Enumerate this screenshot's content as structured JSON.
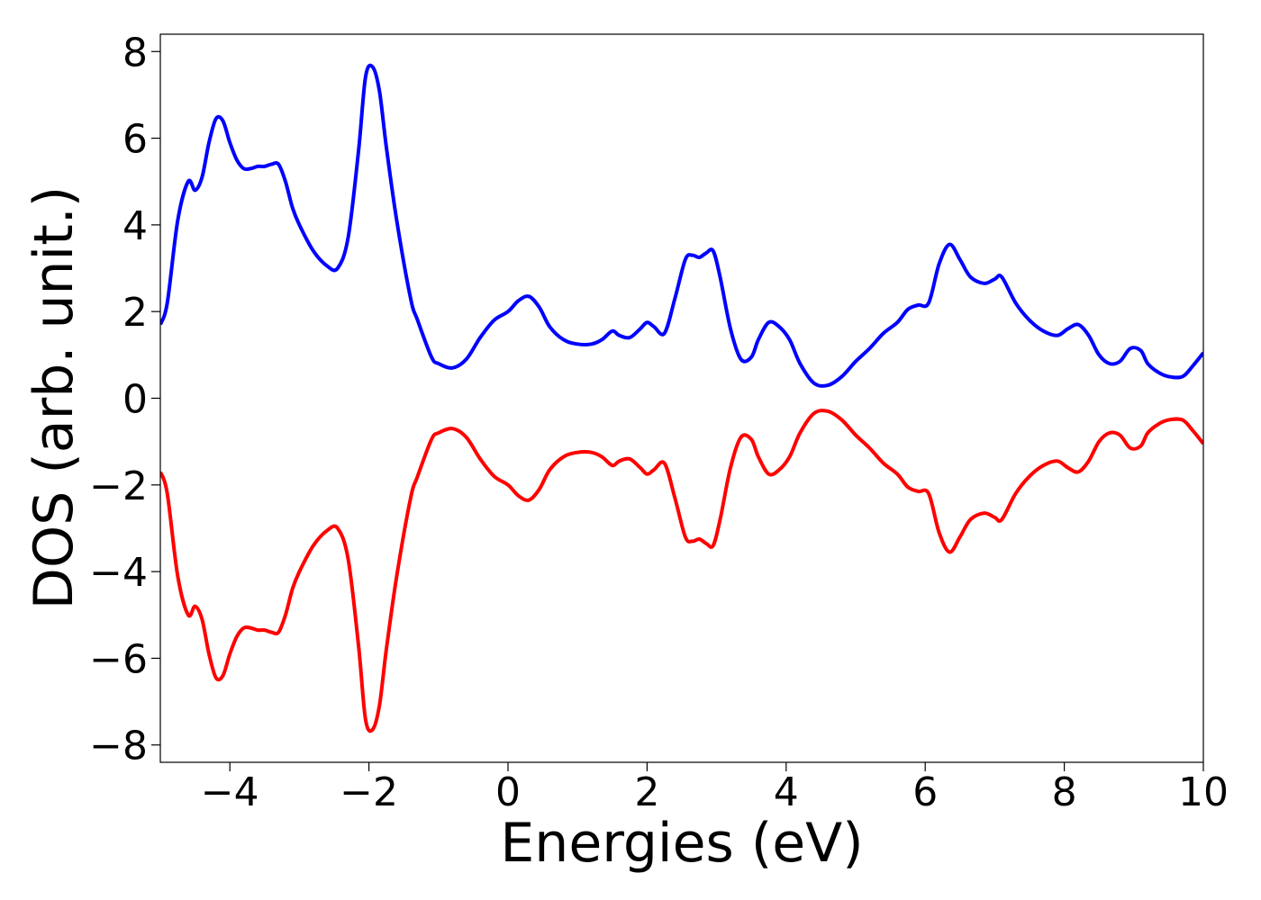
{
  "chart_data": {
    "type": "line",
    "title": "",
    "xlabel": "Energies (eV)",
    "ylabel": "DOS (arb. unit.)",
    "xlim": [
      -5,
      10
    ],
    "ylim": [
      -8.4,
      8.4
    ],
    "xticks": [
      -4,
      -2,
      0,
      2,
      4,
      6,
      8,
      10
    ],
    "xtick_labels": [
      "−4",
      "−2",
      "0",
      "2",
      "4",
      "6",
      "8",
      "10"
    ],
    "yticks": [
      8,
      6,
      4,
      2,
      0,
      -2,
      -4,
      -6,
      -8
    ],
    "ytick_labels": [
      "8",
      "6",
      "4",
      "2",
      "0",
      "−2",
      "−4",
      "−6",
      "−8"
    ],
    "grid": false,
    "legend": false,
    "series": [
      {
        "color": "#0000ff",
        "x": [
          -5.0,
          -4.9,
          -4.75,
          -4.6,
          -4.5,
          -4.4,
          -4.3,
          -4.2,
          -4.1,
          -4.0,
          -3.9,
          -3.8,
          -3.7,
          -3.6,
          -3.5,
          -3.4,
          -3.3,
          -3.2,
          -3.1,
          -3.0,
          -2.8,
          -2.6,
          -2.45,
          -2.3,
          -2.15,
          -2.05,
          -1.95,
          -1.85,
          -1.75,
          -1.6,
          -1.4,
          -1.3,
          -1.1,
          -1.0,
          -0.8,
          -0.6,
          -0.4,
          -0.2,
          0.0,
          0.15,
          0.3,
          0.45,
          0.6,
          0.8,
          1.0,
          1.2,
          1.35,
          1.5,
          1.6,
          1.75,
          1.9,
          2.0,
          2.1,
          2.25,
          2.4,
          2.55,
          2.65,
          2.75,
          2.85,
          2.95,
          3.05,
          3.2,
          3.35,
          3.5,
          3.6,
          3.75,
          3.9,
          4.05,
          4.2,
          4.4,
          4.6,
          4.8,
          5.0,
          5.2,
          5.4,
          5.6,
          5.75,
          5.9,
          6.05,
          6.2,
          6.35,
          6.5,
          6.65,
          6.85,
          7.0,
          7.1,
          7.3,
          7.5,
          7.7,
          7.9,
          8.05,
          8.2,
          8.35,
          8.5,
          8.65,
          8.8,
          8.95,
          9.1,
          9.2,
          9.35,
          9.5,
          9.7,
          9.85,
          10.0
        ],
        "y": [
          1.7,
          2.2,
          4.1,
          5.0,
          4.8,
          5.1,
          5.9,
          6.45,
          6.4,
          5.9,
          5.5,
          5.3,
          5.3,
          5.35,
          5.35,
          5.4,
          5.4,
          5.0,
          4.4,
          4.0,
          3.4,
          3.05,
          3.0,
          3.7,
          5.7,
          7.4,
          7.65,
          7.1,
          5.8,
          4.1,
          2.3,
          1.8,
          0.95,
          0.8,
          0.7,
          0.9,
          1.4,
          1.8,
          2.0,
          2.25,
          2.35,
          2.1,
          1.65,
          1.35,
          1.25,
          1.25,
          1.35,
          1.55,
          1.45,
          1.4,
          1.6,
          1.75,
          1.65,
          1.5,
          2.3,
          3.2,
          3.3,
          3.25,
          3.35,
          3.4,
          2.8,
          1.6,
          0.9,
          0.95,
          1.35,
          1.75,
          1.65,
          1.35,
          0.8,
          0.35,
          0.3,
          0.5,
          0.85,
          1.15,
          1.5,
          1.75,
          2.05,
          2.15,
          2.2,
          3.1,
          3.55,
          3.2,
          2.8,
          2.65,
          2.75,
          2.8,
          2.2,
          1.8,
          1.55,
          1.45,
          1.6,
          1.7,
          1.45,
          1.0,
          0.8,
          0.85,
          1.15,
          1.1,
          0.8,
          0.6,
          0.5,
          0.5,
          0.75,
          1.05
        ]
      },
      {
        "color": "#ff0000",
        "x": [
          -5.0,
          -4.9,
          -4.75,
          -4.6,
          -4.5,
          -4.4,
          -4.3,
          -4.2,
          -4.1,
          -4.0,
          -3.9,
          -3.8,
          -3.7,
          -3.6,
          -3.5,
          -3.4,
          -3.3,
          -3.2,
          -3.1,
          -3.0,
          -2.8,
          -2.6,
          -2.45,
          -2.3,
          -2.15,
          -2.05,
          -1.95,
          -1.85,
          -1.75,
          -1.6,
          -1.4,
          -1.3,
          -1.1,
          -1.0,
          -0.8,
          -0.6,
          -0.4,
          -0.2,
          0.0,
          0.15,
          0.3,
          0.45,
          0.6,
          0.8,
          1.0,
          1.2,
          1.35,
          1.5,
          1.6,
          1.75,
          1.9,
          2.0,
          2.1,
          2.25,
          2.4,
          2.55,
          2.65,
          2.75,
          2.85,
          2.95,
          3.05,
          3.2,
          3.35,
          3.5,
          3.6,
          3.75,
          3.9,
          4.05,
          4.2,
          4.4,
          4.6,
          4.8,
          5.0,
          5.2,
          5.4,
          5.6,
          5.75,
          5.9,
          6.05,
          6.2,
          6.35,
          6.5,
          6.65,
          6.85,
          7.0,
          7.1,
          7.3,
          7.5,
          7.7,
          7.9,
          8.05,
          8.2,
          8.35,
          8.5,
          8.65,
          8.8,
          8.95,
          9.1,
          9.2,
          9.35,
          9.5,
          9.7,
          9.85,
          10.0
        ],
        "y": [
          -1.7,
          -2.2,
          -4.1,
          -5.0,
          -4.8,
          -5.1,
          -5.9,
          -6.45,
          -6.4,
          -5.9,
          -5.5,
          -5.3,
          -5.3,
          -5.35,
          -5.35,
          -5.4,
          -5.4,
          -5.0,
          -4.4,
          -4.0,
          -3.4,
          -3.05,
          -3.0,
          -3.7,
          -5.7,
          -7.4,
          -7.65,
          -7.1,
          -5.8,
          -4.1,
          -2.3,
          -1.8,
          -0.95,
          -0.8,
          -0.7,
          -0.9,
          -1.4,
          -1.8,
          -2.0,
          -2.25,
          -2.35,
          -2.1,
          -1.65,
          -1.35,
          -1.25,
          -1.25,
          -1.35,
          -1.55,
          -1.45,
          -1.4,
          -1.6,
          -1.75,
          -1.65,
          -1.5,
          -2.3,
          -3.2,
          -3.3,
          -3.25,
          -3.35,
          -3.4,
          -2.8,
          -1.6,
          -0.9,
          -0.95,
          -1.35,
          -1.75,
          -1.65,
          -1.35,
          -0.8,
          -0.35,
          -0.3,
          -0.5,
          -0.85,
          -1.15,
          -1.5,
          -1.75,
          -2.05,
          -2.15,
          -2.2,
          -3.1,
          -3.55,
          -3.2,
          -2.8,
          -2.65,
          -2.75,
          -2.8,
          -2.2,
          -1.8,
          -1.55,
          -1.45,
          -1.6,
          -1.7,
          -1.45,
          -1.0,
          -0.8,
          -0.85,
          -1.15,
          -1.1,
          -0.8,
          -0.6,
          -0.5,
          -0.5,
          -0.75,
          -1.05
        ]
      }
    ]
  }
}
